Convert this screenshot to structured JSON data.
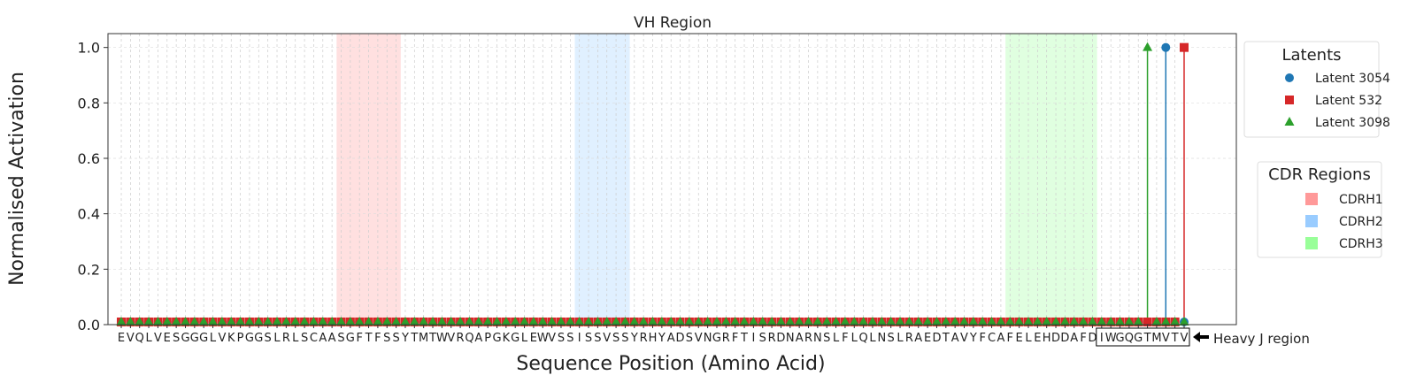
{
  "chart_data": {
    "type": "scatter",
    "subtype": "stem",
    "title": "VH Region",
    "xlabel": "Sequence Position (Amino Acid)",
    "ylabel": "Normalised Activation",
    "ylim": [
      0,
      1.05
    ],
    "xlim": [
      -1.45,
      121.7
    ],
    "yticks": [
      0.0,
      0.2,
      0.4,
      0.6,
      0.8,
      1.0
    ],
    "ytick_labels": [
      "0.0",
      "0.2",
      "0.4",
      "0.6",
      "0.8",
      "1.0"
    ],
    "grid": true,
    "sequence": "EVQLVESGGGLVKPGGSLRLSCAASGFTFSSYTMTWVRQAPGKGLEWVSSISSVSSYRHYADSVNGRFTISRDNARNSLFLQLNSLRAEDTAVYFCAFELEHDDAFDIWGQGTMVTV",
    "series": [
      {
        "name": "Latent 3054",
        "color": "#1f77b4",
        "marker": "circle",
        "default_value": 0,
        "peaks": [
          {
            "index": 114,
            "value": 1.0
          }
        ]
      },
      {
        "name": "Latent 532",
        "color": "#d62728",
        "marker": "square",
        "default_value": 0,
        "peaks": [
          {
            "index": 116,
            "value": 1.0
          }
        ]
      },
      {
        "name": "Latent 3098",
        "color": "#2ca02c",
        "marker": "triangle",
        "default_value": 0,
        "peaks": [
          {
            "index": 112,
            "value": 1.0
          }
        ]
      }
    ],
    "regions": [
      {
        "name": "CDRH1",
        "start": 24,
        "end": 30,
        "color": "#ff9999"
      },
      {
        "name": "CDRH2",
        "start": 50,
        "end": 55,
        "color": "#99ccff"
      },
      {
        "name": "CDRH3",
        "start": 97,
        "end": 106,
        "color": "#99ff99"
      }
    ],
    "legend_latents": {
      "title": "Latents",
      "placement": "right-top"
    },
    "legend_regions": {
      "title": "CDR Regions",
      "placement": "right-middle"
    },
    "annotation": {
      "text": "Heavy J region",
      "start": 107,
      "end": 116
    }
  }
}
